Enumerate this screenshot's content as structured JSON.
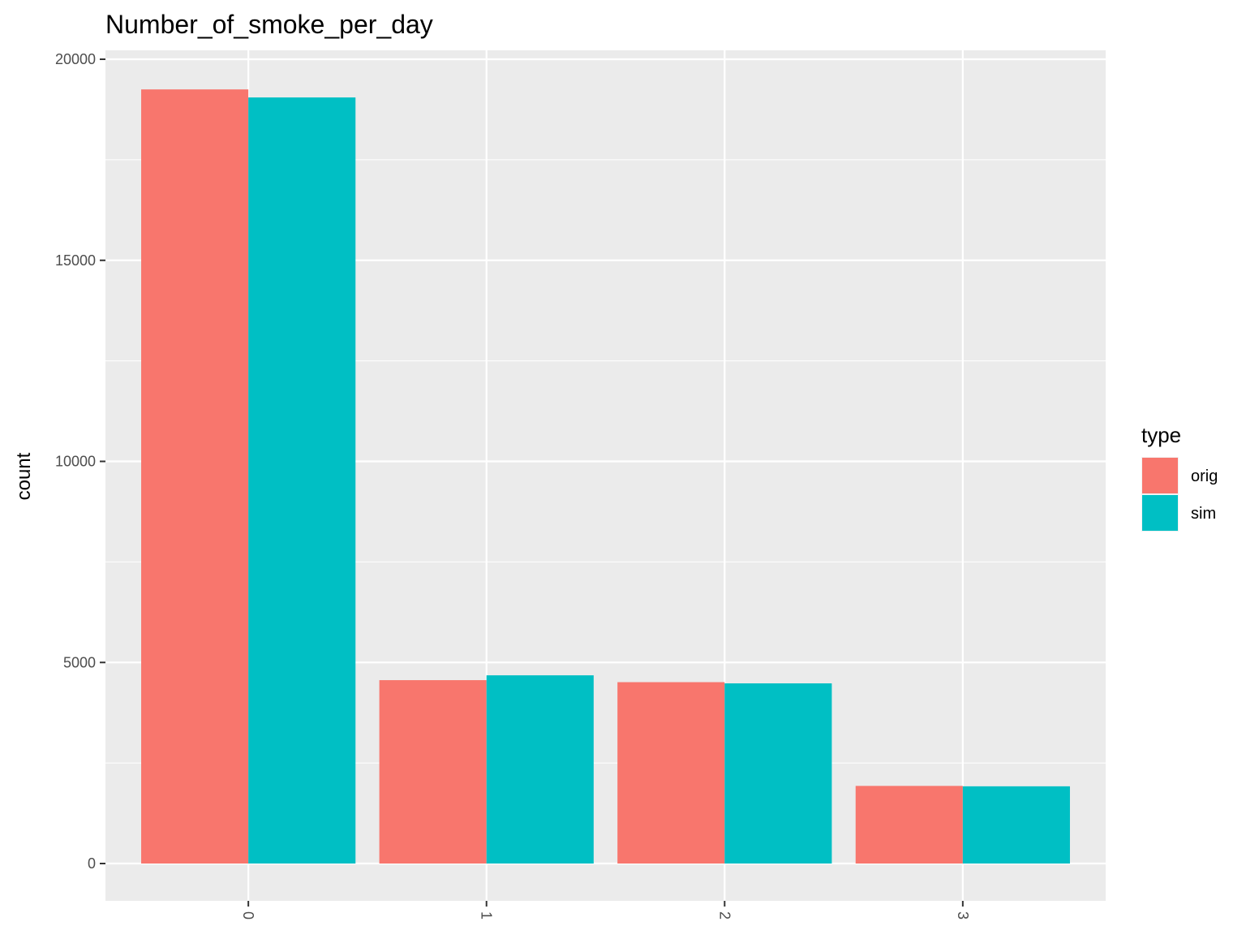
{
  "chart_data": {
    "type": "bar",
    "title": "Number_of_smoke_per_day",
    "xlabel": "",
    "ylabel": "count",
    "categories": [
      "0",
      "1",
      "2",
      "3"
    ],
    "series": [
      {
        "name": "orig",
        "color": "#F8766D",
        "values": [
          19250,
          4560,
          4510,
          1930
        ]
      },
      {
        "name": "sim",
        "color": "#00BFC4",
        "values": [
          19050,
          4680,
          4480,
          1920
        ]
      }
    ],
    "y_ticks": [
      0,
      5000,
      10000,
      15000,
      20000
    ],
    "y_tick_labels": [
      "0",
      "5000",
      "10000",
      "15000",
      "20000"
    ],
    "ylim": [
      -1900,
      20200
    ],
    "legend": {
      "title": "type",
      "position": "right"
    },
    "grid": true,
    "panel_background": "#EBEBEB"
  }
}
